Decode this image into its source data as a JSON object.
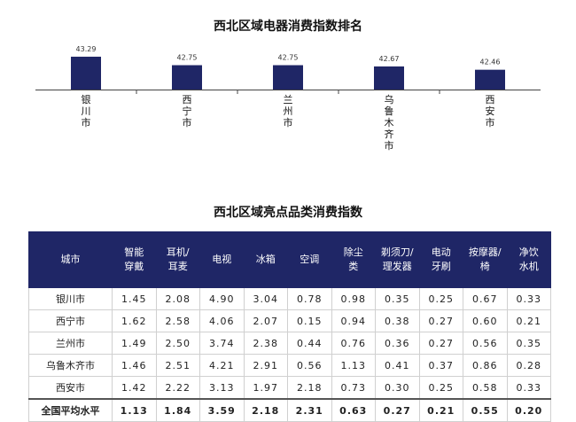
{
  "chart_data": {
    "type": "bar",
    "title": "西北区域电器消费指数排名",
    "categories": [
      "银川市",
      "西宁市",
      "兰州市",
      "乌鲁木齐市",
      "西安市"
    ],
    "values": [
      43.29,
      42.75,
      42.75,
      42.67,
      42.46
    ],
    "value_labels": [
      "43.29",
      "42.75",
      "42.75",
      "42.67",
      "42.46"
    ],
    "ylim": [
      41.2,
      43.4
    ],
    "bar_color": "#1f2666"
  },
  "table": {
    "title": "西北区域亮点品类消费指数",
    "headers": [
      "城市",
      "智能穿戴",
      "耳机/耳麦",
      "电视",
      "冰箱",
      "空调",
      "除尘类",
      "剃须刀/理发器",
      "电动牙刷",
      "按摩器/椅",
      "净饮水机"
    ],
    "rows": [
      [
        "银川市",
        "1.45",
        "2.08",
        "4.90",
        "3.04",
        "0.78",
        "0.98",
        "0.35",
        "0.25",
        "0.67",
        "0.33"
      ],
      [
        "西宁市",
        "1.62",
        "2.58",
        "4.06",
        "2.07",
        "0.15",
        "0.94",
        "0.38",
        "0.27",
        "0.60",
        "0.21"
      ],
      [
        "兰州市",
        "1.49",
        "2.50",
        "3.74",
        "2.38",
        "0.44",
        "0.76",
        "0.36",
        "0.27",
        "0.56",
        "0.35"
      ],
      [
        "乌鲁木齐市",
        "1.46",
        "2.51",
        "4.21",
        "2.91",
        "0.56",
        "1.13",
        "0.41",
        "0.37",
        "0.86",
        "0.28"
      ],
      [
        "西安市",
        "1.42",
        "2.22",
        "3.13",
        "1.97",
        "2.18",
        "0.73",
        "0.30",
        "0.25",
        "0.58",
        "0.33"
      ]
    ],
    "average_row": [
      "全国平均水平",
      "1.13",
      "1.84",
      "3.59",
      "2.18",
      "2.31",
      "0.63",
      "0.27",
      "0.21",
      "0.55",
      "0.20"
    ],
    "header_color": "#1f2666"
  }
}
